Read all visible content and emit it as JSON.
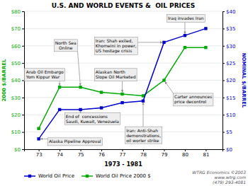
{
  "chart_data": {
    "type": "line",
    "title": "U.S. AND WORLD EVENTS &  OIL PRICES",
    "x_label": "1973 - 1981",
    "y_label": "2000 $/BARREL",
    "y2_label": "NOMINAL $/BARREL",
    "x": [
      73,
      74,
      75,
      76,
      77,
      78,
      79,
      80,
      81
    ],
    "xlim": [
      72.3,
      81.8
    ],
    "xticks": [
      73,
      74,
      75,
      76,
      77,
      78,
      79,
      80,
      81
    ],
    "ylim": [
      0,
      80
    ],
    "yticks": [
      {
        "value": 0,
        "label": "$0"
      },
      {
        "value": 10,
        "label": "$10"
      },
      {
        "value": 20,
        "label": "$20"
      },
      {
        "value": 30,
        "label": "$30"
      },
      {
        "value": 40,
        "label": "$40"
      },
      {
        "value": 50,
        "label": "$50"
      },
      {
        "value": 60,
        "label": "$60"
      },
      {
        "value": 70,
        "label": "$70"
      },
      {
        "value": 80,
        "label": "$80"
      }
    ],
    "y2lim": [
      0,
      40
    ],
    "y2ticks": [
      {
        "value": 0,
        "label": "$0"
      },
      {
        "value": 5,
        "label": "$5"
      },
      {
        "value": 10,
        "label": "$10"
      },
      {
        "value": 15,
        "label": "$15"
      },
      {
        "value": 20,
        "label": "$20"
      },
      {
        "value": 25,
        "label": "$25"
      },
      {
        "value": 30,
        "label": "$30"
      },
      {
        "value": 35,
        "label": "$35"
      },
      {
        "value": 40,
        "label": "$40"
      }
    ],
    "grid": true,
    "legend": "bottom",
    "series": [
      {
        "name": "World Oil Price",
        "color": "#0000cc",
        "marker": "square",
        "axis": "y2",
        "values": [
          3.0,
          11.5,
          11.5,
          12.0,
          13.5,
          14.0,
          31.0,
          33.0,
          35.0
        ]
      },
      {
        "name": "World Oil Price 2000 $",
        "color": "#00aa00",
        "marker": "square",
        "axis": "y",
        "values": [
          12.0,
          36.0,
          36.0,
          33.0,
          32.0,
          31.0,
          40.0,
          59.0,
          59.0
        ]
      }
    ],
    "annotations": [
      "Alaska Pipeline Approval",
      "Arab Oil Embargo\nYom Kippur War",
      "North Sea\nOnline",
      "End of  concessions\nSaudi, Kuwait, Venezuela",
      "Iran: Shah exiled,\nKhomeini in power,\nUS hostage crisis",
      "Alaskan North\nSlope Oil Marketed",
      "Iran: Anti-Shah\ndemonstrations,\noil worler strike",
      "Iraq invades Iran",
      "Carter announces\nprice decontrol",
      "WTRG Economics ©2003\nwww.wtrg.com\n(479) 293-4081"
    ]
  }
}
